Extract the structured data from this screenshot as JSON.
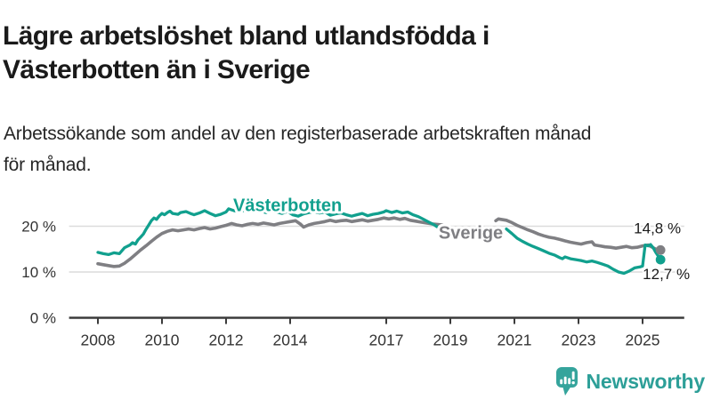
{
  "header": {
    "title_lines": [
      "Lägre arbetslöshet bland utlandsfödda i",
      "Västerbotten än i Sverige"
    ],
    "subtitle_lines": [
      "Arbetssökande som andel av den registerbaserade arbetskraften månad",
      "för månad."
    ]
  },
  "branding": {
    "name": "Newsworthy",
    "text_color": "#2d9f98",
    "icon_color": "#35a49c",
    "icon": "bar-chart-speech-bubble"
  },
  "colors": {
    "vasterbotten_line": "#11a08e",
    "sverige_line": "#7f7f83",
    "gridline": "#dcdcdc",
    "axis": "#3c3c3c",
    "tick_label": "#333333",
    "annotation_text": "#1a1a1a",
    "background": "#ffffff"
  },
  "chart_data": {
    "type": "line",
    "title": "Lägre arbetslöshet bland utlandsfödda i Västerbotten än i Sverige",
    "subtitle": "Arbetssökande som andel av den registerbaserade arbetskraften månad för månad.",
    "xlabel": "",
    "ylabel": "",
    "x_unit": "year (decimal = month)",
    "y_unit": "percent of registered labour force",
    "xlim": [
      2007.1,
      2026.3
    ],
    "ylim": [
      0,
      26
    ],
    "grid": "horizontal",
    "legend": "inline-labels",
    "yticks": [
      {
        "value": 0,
        "label": "0 %"
      },
      {
        "value": 10,
        "label": "10 %"
      },
      {
        "value": 20,
        "label": "20 %"
      }
    ],
    "xticks": [
      {
        "value": 2008,
        "label": "2008"
      },
      {
        "value": 2010,
        "label": "2010"
      },
      {
        "value": 2012,
        "label": "2012"
      },
      {
        "value": 2014,
        "label": "2014"
      },
      {
        "value": 2017,
        "label": "2017"
      },
      {
        "value": 2019,
        "label": "2019"
      },
      {
        "value": 2021,
        "label": "2021"
      },
      {
        "value": 2023,
        "label": "2023"
      },
      {
        "value": 2025,
        "label": "2025"
      }
    ],
    "note": "data gap between mid-2018 and mid-2020; series drawn as two segments",
    "series": [
      {
        "name": "Sverige",
        "slug": "sverige",
        "color": "#7f7f83",
        "line_width": 3.6,
        "label_x": 2019.64,
        "label_y": 18.3,
        "end_label": "14,8 %",
        "end_value": 14.8,
        "end_label_offset": [
          -30,
          -19
        ],
        "segments": [
          [
            [
              2008.0,
              11.8
            ],
            [
              2008.17,
              11.6
            ],
            [
              2008.33,
              11.4
            ],
            [
              2008.5,
              11.2
            ],
            [
              2008.67,
              11.3
            ],
            [
              2008.83,
              11.9
            ],
            [
              2009.0,
              12.8
            ],
            [
              2009.17,
              13.8
            ],
            [
              2009.33,
              14.8
            ],
            [
              2009.5,
              15.7
            ],
            [
              2009.67,
              16.7
            ],
            [
              2009.83,
              17.6
            ],
            [
              2010.0,
              18.4
            ],
            [
              2010.17,
              18.9
            ],
            [
              2010.33,
              19.2
            ],
            [
              2010.5,
              19.0
            ],
            [
              2010.67,
              19.2
            ],
            [
              2010.83,
              19.4
            ],
            [
              2011.0,
              19.2
            ],
            [
              2011.17,
              19.5
            ],
            [
              2011.33,
              19.7
            ],
            [
              2011.5,
              19.4
            ],
            [
              2011.67,
              19.6
            ],
            [
              2011.83,
              19.9
            ],
            [
              2012.0,
              20.2
            ],
            [
              2012.17,
              20.6
            ],
            [
              2012.33,
              20.3
            ],
            [
              2012.5,
              20.1
            ],
            [
              2012.67,
              20.4
            ],
            [
              2012.83,
              20.6
            ],
            [
              2013.0,
              20.4
            ],
            [
              2013.17,
              20.7
            ],
            [
              2013.33,
              20.5
            ],
            [
              2013.5,
              20.3
            ],
            [
              2013.67,
              20.6
            ],
            [
              2013.83,
              20.8
            ],
            [
              2014.0,
              21.0
            ],
            [
              2014.17,
              21.2
            ],
            [
              2014.33,
              20.4
            ],
            [
              2014.42,
              19.8
            ],
            [
              2014.58,
              20.3
            ],
            [
              2014.75,
              20.6
            ],
            [
              2014.92,
              20.8
            ],
            [
              2015.08,
              21.0
            ],
            [
              2015.25,
              21.3
            ],
            [
              2015.42,
              21.0
            ],
            [
              2015.58,
              21.2
            ],
            [
              2015.75,
              21.3
            ],
            [
              2015.92,
              21.0
            ],
            [
              2016.08,
              21.2
            ],
            [
              2016.25,
              21.4
            ],
            [
              2016.42,
              21.1
            ],
            [
              2016.58,
              21.3
            ],
            [
              2016.75,
              21.5
            ],
            [
              2016.92,
              21.8
            ],
            [
              2017.08,
              21.6
            ],
            [
              2017.25,
              21.8
            ],
            [
              2017.42,
              21.5
            ],
            [
              2017.58,
              21.7
            ],
            [
              2017.75,
              21.3
            ],
            [
              2017.92,
              21.1
            ],
            [
              2018.08,
              20.9
            ],
            [
              2018.25,
              20.7
            ],
            [
              2018.42,
              20.5
            ],
            [
              2018.58,
              20.4
            ],
            [
              2018.75,
              20.3
            ]
          ],
          [
            [
              2020.42,
              21.2
            ],
            [
              2020.5,
              21.6
            ],
            [
              2020.58,
              21.5
            ],
            [
              2020.75,
              21.3
            ],
            [
              2020.92,
              20.8
            ],
            [
              2021.08,
              20.2
            ],
            [
              2021.25,
              19.7
            ],
            [
              2021.42,
              19.2
            ],
            [
              2021.58,
              18.8
            ],
            [
              2021.75,
              18.3
            ],
            [
              2021.92,
              17.9
            ],
            [
              2022.08,
              17.6
            ],
            [
              2022.25,
              17.4
            ],
            [
              2022.42,
              17.1
            ],
            [
              2022.58,
              16.8
            ],
            [
              2022.75,
              16.5
            ],
            [
              2022.92,
              16.3
            ],
            [
              2023.08,
              16.1
            ],
            [
              2023.25,
              16.4
            ],
            [
              2023.42,
              16.6
            ],
            [
              2023.5,
              15.9
            ],
            [
              2023.67,
              15.7
            ],
            [
              2023.83,
              15.5
            ],
            [
              2024.0,
              15.4
            ],
            [
              2024.17,
              15.2
            ],
            [
              2024.33,
              15.4
            ],
            [
              2024.5,
              15.6
            ],
            [
              2024.67,
              15.3
            ],
            [
              2024.83,
              15.4
            ],
            [
              2025.0,
              15.7
            ],
            [
              2025.17,
              15.9
            ],
            [
              2025.25,
              15.6
            ],
            [
              2025.33,
              15.3
            ],
            [
              2025.42,
              15.0
            ],
            [
              2025.56,
              14.8
            ]
          ]
        ]
      },
      {
        "name": "Västerbotten",
        "slug": "vasterbotten",
        "color": "#11a08e",
        "line_width": 3.3,
        "label_x": 2013.92,
        "label_y": 24.3,
        "end_label": "12,7 %",
        "end_value": 12.7,
        "end_label_offset": [
          -20,
          22
        ],
        "segments": [
          [
            [
              2008.0,
              14.3
            ],
            [
              2008.17,
              14.0
            ],
            [
              2008.33,
              13.8
            ],
            [
              2008.5,
              14.2
            ],
            [
              2008.67,
              14.0
            ],
            [
              2008.83,
              15.3
            ],
            [
              2009.0,
              15.9
            ],
            [
              2009.08,
              16.4
            ],
            [
              2009.17,
              16.1
            ],
            [
              2009.25,
              17.0
            ],
            [
              2009.33,
              17.6
            ],
            [
              2009.42,
              18.3
            ],
            [
              2009.5,
              19.3
            ],
            [
              2009.58,
              20.2
            ],
            [
              2009.67,
              21.2
            ],
            [
              2009.75,
              21.8
            ],
            [
              2009.83,
              21.5
            ],
            [
              2009.92,
              22.3
            ],
            [
              2010.0,
              22.8
            ],
            [
              2010.08,
              22.5
            ],
            [
              2010.17,
              23.0
            ],
            [
              2010.25,
              23.3
            ],
            [
              2010.33,
              22.8
            ],
            [
              2010.5,
              22.6
            ],
            [
              2010.58,
              23.0
            ],
            [
              2010.75,
              23.2
            ],
            [
              2010.92,
              22.7
            ],
            [
              2011.0,
              22.5
            ],
            [
              2011.17,
              22.9
            ],
            [
              2011.33,
              23.4
            ],
            [
              2011.5,
              22.8
            ],
            [
              2011.67,
              22.3
            ],
            [
              2011.83,
              22.6
            ],
            [
              2012.0,
              23.1
            ],
            [
              2012.08,
              23.8
            ],
            [
              2012.25,
              23.4
            ],
            [
              2012.42,
              23.1
            ],
            [
              2012.58,
              23.5
            ],
            [
              2012.75,
              23.2
            ],
            [
              2012.92,
              23.6
            ],
            [
              2013.08,
              23.3
            ],
            [
              2013.25,
              23.0
            ],
            [
              2013.42,
              23.4
            ],
            [
              2013.58,
              23.1
            ],
            [
              2013.75,
              22.8
            ],
            [
              2013.92,
              23.2
            ],
            [
              2014.08,
              22.5
            ],
            [
              2014.25,
              22.2
            ],
            [
              2014.42,
              22.7
            ],
            [
              2014.58,
              23.0
            ],
            [
              2014.75,
              23.2
            ],
            [
              2014.92,
              22.9
            ],
            [
              2015.08,
              23.1
            ],
            [
              2015.25,
              22.4
            ],
            [
              2015.42,
              22.7
            ],
            [
              2015.58,
              22.9
            ],
            [
              2015.75,
              22.5
            ],
            [
              2015.92,
              22.2
            ],
            [
              2016.08,
              22.5
            ],
            [
              2016.25,
              22.8
            ],
            [
              2016.42,
              22.3
            ],
            [
              2016.58,
              22.6
            ],
            [
              2016.75,
              22.8
            ],
            [
              2016.92,
              23.1
            ],
            [
              2017.0,
              23.4
            ],
            [
              2017.17,
              23.0
            ],
            [
              2017.33,
              23.3
            ],
            [
              2017.5,
              22.9
            ],
            [
              2017.67,
              23.1
            ],
            [
              2017.83,
              22.5
            ],
            [
              2018.0,
              22.1
            ],
            [
              2018.17,
              21.5
            ],
            [
              2018.33,
              20.9
            ],
            [
              2018.5,
              20.3
            ],
            [
              2018.58,
              19.9
            ],
            [
              2018.67,
              19.7
            ],
            [
              2018.75,
              20.1
            ]
          ],
          [
            [
              2020.75,
              19.4
            ],
            [
              2020.92,
              18.4
            ],
            [
              2021.08,
              17.4
            ],
            [
              2021.25,
              16.7
            ],
            [
              2021.42,
              16.1
            ],
            [
              2021.58,
              15.6
            ],
            [
              2021.75,
              15.1
            ],
            [
              2021.92,
              14.6
            ],
            [
              2022.08,
              14.1
            ],
            [
              2022.25,
              13.7
            ],
            [
              2022.42,
              13.1
            ],
            [
              2022.5,
              12.9
            ],
            [
              2022.58,
              13.3
            ],
            [
              2022.75,
              12.9
            ],
            [
              2022.92,
              12.7
            ],
            [
              2023.08,
              12.5
            ],
            [
              2023.25,
              12.2
            ],
            [
              2023.42,
              12.4
            ],
            [
              2023.58,
              12.1
            ],
            [
              2023.75,
              11.7
            ],
            [
              2023.92,
              11.3
            ],
            [
              2024.08,
              10.6
            ],
            [
              2024.25,
              10.0
            ],
            [
              2024.42,
              9.7
            ],
            [
              2024.58,
              10.2
            ],
            [
              2024.75,
              10.9
            ],
            [
              2024.92,
              11.1
            ],
            [
              2025.0,
              11.3
            ],
            [
              2025.08,
              15.9
            ],
            [
              2025.17,
              15.7
            ],
            [
              2025.25,
              16.0
            ],
            [
              2025.33,
              15.3
            ],
            [
              2025.42,
              14.2
            ],
            [
              2025.56,
              12.7
            ]
          ]
        ]
      }
    ]
  }
}
